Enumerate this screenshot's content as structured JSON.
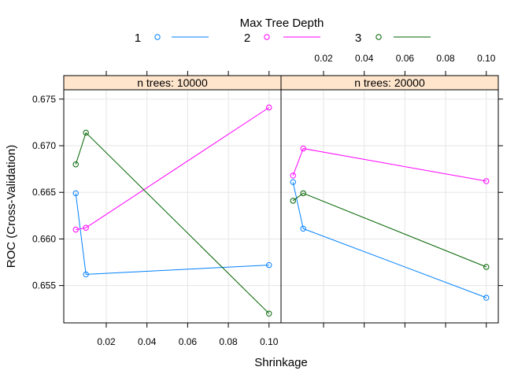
{
  "chart_data": {
    "type": "line",
    "legend": {
      "title": "Max Tree Depth",
      "placement": "top",
      "entries": [
        {
          "label": "1",
          "color": "#0080ff"
        },
        {
          "label": "2",
          "color": "#ff00ff"
        },
        {
          "label": "3",
          "color": "#006400"
        }
      ]
    },
    "xlabel": "Shrinkage",
    "ylabel": "ROC (Cross-Validation)",
    "xlim": [
      -0.0009,
      0.1059
    ],
    "ylim": [
      0.651,
      0.676
    ],
    "x_ticks": [
      0.02,
      0.04,
      0.06,
      0.08,
      0.1
    ],
    "x_tick_labels": [
      "0.02",
      "0.04",
      "0.06",
      "0.08",
      "0.10"
    ],
    "y_ticks": [
      0.655,
      0.66,
      0.665,
      0.67,
      0.675
    ],
    "y_tick_labels": [
      "0.655",
      "0.660",
      "0.665",
      "0.670",
      "0.675"
    ],
    "grid": true,
    "panels": [
      {
        "strip": "n trees: 10000",
        "series": [
          {
            "name": "1",
            "color": "#0080ff",
            "x": [
              0.005,
              0.01,
              0.1
            ],
            "y": [
              0.6649,
              0.6562,
              0.6572
            ]
          },
          {
            "name": "2",
            "color": "#ff00ff",
            "x": [
              0.005,
              0.01,
              0.1
            ],
            "y": [
              0.661,
              0.6612,
              0.6741
            ]
          },
          {
            "name": "3",
            "color": "#006400",
            "x": [
              0.005,
              0.01,
              0.1
            ],
            "y": [
              0.668,
              0.6714,
              0.652
            ]
          }
        ]
      },
      {
        "strip": "n trees: 20000",
        "series": [
          {
            "name": "1",
            "color": "#0080ff",
            "x": [
              0.005,
              0.01,
              0.1
            ],
            "y": [
              0.6661,
              0.6611,
              0.6537
            ]
          },
          {
            "name": "2",
            "color": "#ff00ff",
            "x": [
              0.005,
              0.01,
              0.1
            ],
            "y": [
              0.6668,
              0.6697,
              0.6662
            ]
          },
          {
            "name": "3",
            "color": "#006400",
            "x": [
              0.005,
              0.01,
              0.1
            ],
            "y": [
              0.6641,
              0.6649,
              0.657
            ]
          }
        ]
      }
    ]
  }
}
